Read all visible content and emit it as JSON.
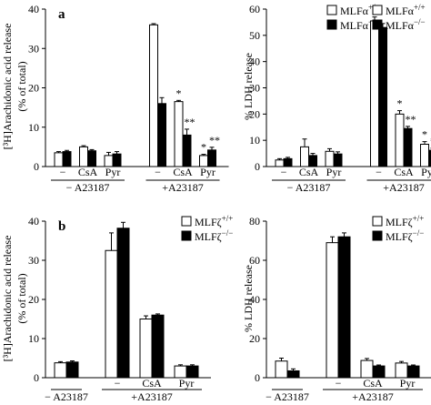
{
  "chart_data": [
    {
      "panel_label": "a",
      "type": "bar",
      "ylabel_lines": [
        "[³H]Arachidonic acid release",
        "(% of total)"
      ],
      "ylim": [
        0,
        40
      ],
      "yticks": [
        0,
        10,
        20,
        30,
        40
      ],
      "categories": [
        "−",
        "CsA",
        "Pyr",
        "−",
        "CsA",
        "Pyr"
      ],
      "groups": [
        {
          "label": "− A23187",
          "from": 0,
          "to": 2
        },
        {
          "label": "+A23187",
          "from": 3,
          "to": 5
        }
      ],
      "legend": {
        "position": "top-right"
      },
      "series": [
        {
          "name": "MLFα+/+",
          "fill": "#ffffff",
          "values": [
            3.5,
            5.0,
            2.8,
            36.0,
            16.5,
            2.8
          ],
          "errors": [
            0.3,
            0.3,
            0.8,
            0.3,
            0.3,
            0.3
          ],
          "annotations": [
            "",
            "",
            "",
            "",
            "*",
            "*"
          ]
        },
        {
          "name": "MLFα−/−",
          "fill": "#000000",
          "values": [
            3.8,
            4.0,
            3.2,
            16.0,
            8.0,
            4.2
          ],
          "errors": [
            0.3,
            0.3,
            0.6,
            1.5,
            1.5,
            0.7
          ],
          "annotations": [
            "",
            "",
            "",
            "",
            "**",
            "**"
          ]
        }
      ]
    },
    {
      "type": "bar",
      "ylabel_lines": [
        "% LDH release"
      ],
      "ylim": [
        0,
        60
      ],
      "yticks": [
        0,
        10,
        20,
        30,
        40,
        50,
        60
      ],
      "categories": [
        "−",
        "CsA",
        "Pyr",
        "−",
        "CsA",
        "Pyr"
      ],
      "groups": [
        {
          "label": "− A23187",
          "from": 0,
          "to": 2
        },
        {
          "label": "+A23187",
          "from": 3,
          "to": 5
        }
      ],
      "legend": {
        "position": "top-right"
      },
      "series": [
        {
          "name": "MLFα+/+",
          "fill": "#ffffff",
          "values": [
            2.5,
            7.5,
            5.8,
            55.5,
            20.0,
            8.5
          ],
          "errors": [
            0.5,
            3.0,
            1.0,
            1.5,
            1.3,
            1.0
          ],
          "annotations": [
            "",
            "",
            "",
            "",
            "*",
            "*"
          ]
        },
        {
          "name": "MLFα−/−",
          "fill": "#000000",
          "values": [
            3.0,
            4.2,
            4.8,
            53.0,
            14.5,
            6.2
          ],
          "errors": [
            0.5,
            0.8,
            0.8,
            1.5,
            0.8,
            0.8
          ],
          "annotations": [
            "",
            "",
            "",
            "",
            "**",
            "**"
          ]
        }
      ]
    },
    {
      "panel_label": "b",
      "type": "bar",
      "ylabel_lines": [
        "[³H]Arachidonic acid release",
        "(% of total)"
      ],
      "ylim": [
        0,
        40
      ],
      "yticks": [
        0,
        10,
        20,
        30,
        40
      ],
      "categories": [
        "",
        "−",
        "CsA",
        "Pyr"
      ],
      "groups": [
        {
          "label": "− A23187",
          "from": 0,
          "to": 0
        },
        {
          "label": "+A23187",
          "from": 1,
          "to": 3
        }
      ],
      "legend": {
        "position": "top-right"
      },
      "series": [
        {
          "name": "MLFζ+/+",
          "fill": "#ffffff",
          "values": [
            3.8,
            32.5,
            15.0,
            3.0
          ],
          "errors": [
            0.3,
            4.5,
            0.8,
            0.3
          ],
          "annotations": [
            "",
            "",
            "",
            ""
          ]
        },
        {
          "name": "MLFζ−/−",
          "fill": "#000000",
          "values": [
            4.0,
            38.2,
            16.0,
            3.0
          ],
          "errors": [
            0.3,
            1.5,
            0.3,
            0.3
          ],
          "annotations": [
            "",
            "",
            "",
            ""
          ]
        }
      ]
    },
    {
      "type": "bar",
      "ylabel_lines": [
        "% LDH release"
      ],
      "ylim": [
        0,
        80
      ],
      "yticks": [
        0,
        20,
        40,
        60,
        80
      ],
      "categories": [
        "",
        "−",
        "CsA",
        "Pyr"
      ],
      "groups": [
        {
          "label": "− A23187",
          "from": 0,
          "to": 0
        },
        {
          "label": "+A23187",
          "from": 1,
          "to": 3
        }
      ],
      "legend": {
        "position": "top-right"
      },
      "series": [
        {
          "name": "MLFζ+/+",
          "fill": "#ffffff",
          "values": [
            8.5,
            69.0,
            8.8,
            7.5
          ],
          "errors": [
            1.5,
            3.0,
            1.0,
            0.8
          ],
          "annotations": [
            "",
            "",
            "",
            ""
          ]
        },
        {
          "name": "MLFζ−/−",
          "fill": "#000000",
          "values": [
            3.5,
            72.0,
            6.0,
            6.0
          ],
          "errors": [
            1.0,
            2.0,
            0.5,
            0.5
          ],
          "annotations": [
            "",
            "",
            "",
            ""
          ]
        }
      ]
    }
  ]
}
